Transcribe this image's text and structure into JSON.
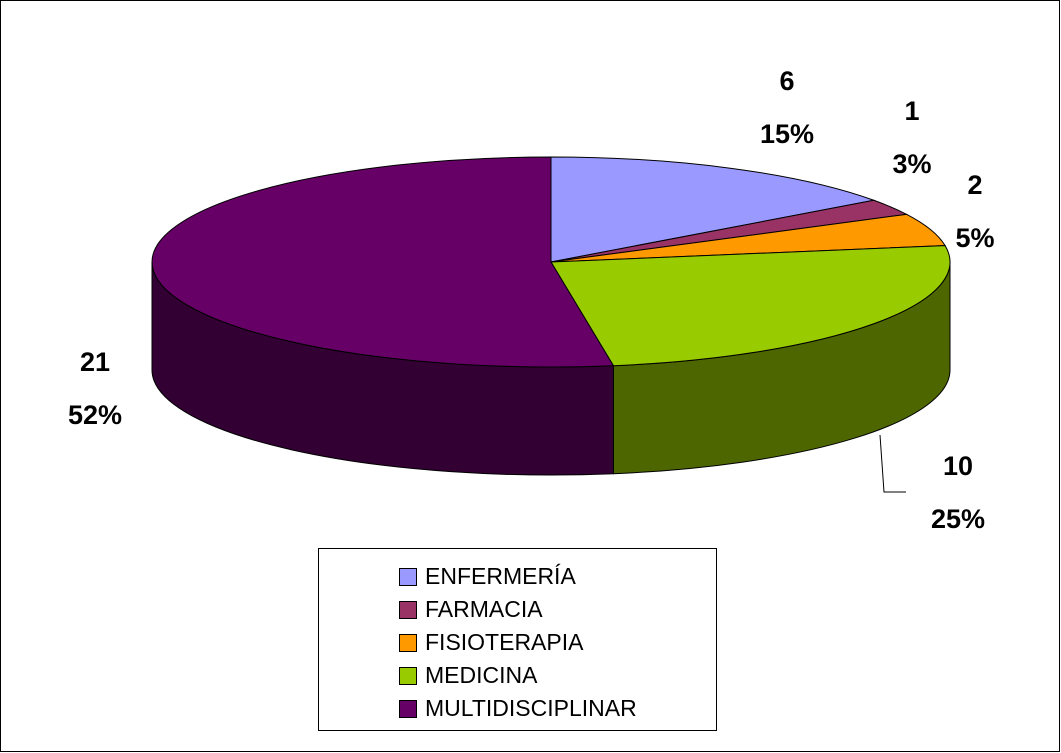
{
  "chart_data": {
    "type": "pie3d",
    "categories": [
      "ENFERMERÍA",
      "FARMACIA",
      "FISIOTERAPIA",
      "MEDICINA",
      "MULTIDISCIPLINAR"
    ],
    "values": [
      6,
      1,
      2,
      10,
      21
    ],
    "percent_labels": [
      "15%",
      "3%",
      "5%",
      "25%",
      "52%"
    ],
    "colors": [
      "#9999ff",
      "#993366",
      "#ff9900",
      "#99cc00",
      "#660066"
    ],
    "side_colors": [
      "#5c5c99",
      "#5c1f3d",
      "#995c00",
      "#4d6600",
      "#330033"
    ]
  }
}
